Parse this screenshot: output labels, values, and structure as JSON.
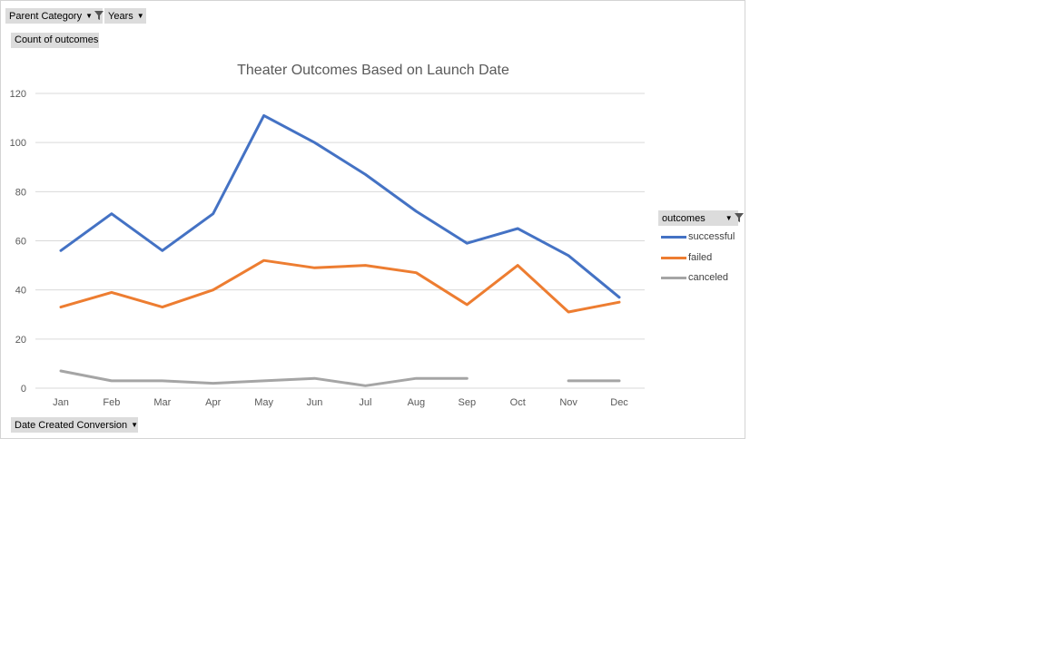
{
  "pivot_buttons": {
    "parent_category": "Parent Category",
    "years": "Years",
    "value_field": "Count of outcomes",
    "axis_field": "Date Created Conversion",
    "legend_field": "outcomes"
  },
  "colors": {
    "successful": "#4472c4",
    "failed": "#ed7d31",
    "canceled": "#a5a5a5",
    "grid": "#d9d9d9",
    "button_bg": "#dcdcdc"
  },
  "chart_data": {
    "type": "line",
    "title": "Theater Outcomes Based on Launch Date",
    "xlabel": "",
    "ylabel": "",
    "categories": [
      "Jan",
      "Feb",
      "Mar",
      "Apr",
      "May",
      "Jun",
      "Jul",
      "Aug",
      "Sep",
      "Oct",
      "Nov",
      "Dec"
    ],
    "ylim": [
      0,
      120
    ],
    "yticks": [
      0,
      20,
      40,
      60,
      80,
      100,
      120
    ],
    "grid": true,
    "legend": "right",
    "series": [
      {
        "name": "successful",
        "values": [
          56,
          71,
          56,
          71,
          111,
          100,
          87,
          72,
          59,
          65,
          54,
          37
        ]
      },
      {
        "name": "failed",
        "values": [
          33,
          39,
          33,
          40,
          52,
          49,
          50,
          47,
          34,
          50,
          31,
          35
        ]
      },
      {
        "name": "canceled",
        "values": [
          7,
          3,
          3,
          2,
          3,
          4,
          1,
          4,
          4,
          null,
          3,
          3
        ]
      }
    ]
  }
}
